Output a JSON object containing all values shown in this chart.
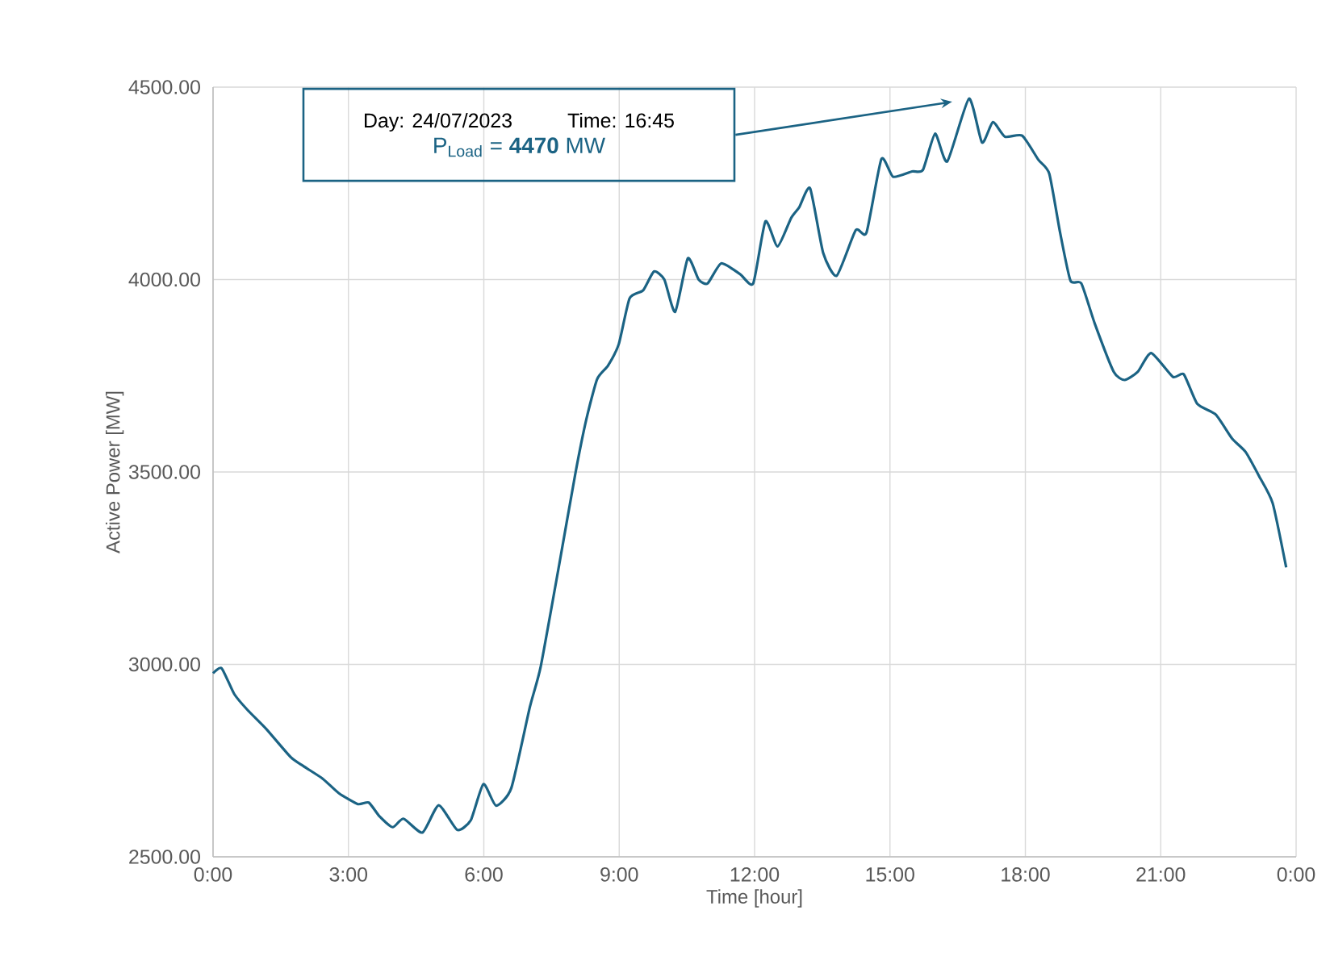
{
  "chart_data": {
    "type": "line",
    "xlabel": "Time [hour]",
    "ylabel": "Active Power [MW]",
    "xlim": [
      0,
      24
    ],
    "ylim": [
      2500,
      4500
    ],
    "xticks": [
      {
        "value": 0,
        "label": "0:00"
      },
      {
        "value": 3,
        "label": "3:00"
      },
      {
        "value": 6,
        "label": "6:00"
      },
      {
        "value": 9,
        "label": "9:00"
      },
      {
        "value": 12,
        "label": "12:00"
      },
      {
        "value": 15,
        "label": "15:00"
      },
      {
        "value": 18,
        "label": "18:00"
      },
      {
        "value": 21,
        "label": "21:00"
      },
      {
        "value": 24,
        "label": "0:00"
      }
    ],
    "yticks": [
      {
        "value": 2500,
        "label": "2500.00"
      },
      {
        "value": 3000,
        "label": "3000.00"
      },
      {
        "value": 3500,
        "label": "3500.00"
      },
      {
        "value": 4000,
        "label": "4000.00"
      },
      {
        "value": 4500,
        "label": "4500.00"
      }
    ],
    "grid": true,
    "line_style": "solid",
    "series": [
      {
        "color": "#1b6384",
        "x": [
          0,
          0.19,
          0.47,
          0.76,
          1.18,
          1.72,
          2.01,
          2.43,
          2.79,
          3.21,
          3.45,
          3.69,
          3.98,
          4.22,
          4.64,
          5.0,
          5.41,
          5.71,
          5.99,
          6.27,
          6.61,
          7.02,
          7.26,
          7.67,
          8.03,
          8.27,
          8.51,
          8.75,
          8.99,
          9.23,
          9.53,
          9.77,
          10.0,
          10.24,
          10.52,
          10.76,
          10.96,
          11.26,
          11.68,
          11.97,
          12.24,
          12.51,
          12.81,
          12.99,
          13.23,
          13.52,
          13.82,
          14.24,
          14.48,
          14.81,
          15.07,
          15.49,
          15.73,
          16.0,
          16.27,
          16.75,
          17.04,
          17.28,
          17.55,
          17.93,
          18.29,
          18.53,
          18.77,
          19.0,
          19.24,
          19.54,
          19.96,
          20.2,
          20.49,
          20.79,
          21.27,
          21.51,
          21.81,
          22.22,
          22.58,
          22.88,
          23.18,
          23.48,
          23.78
        ],
        "values": [
          2977,
          2990,
          2923,
          2882,
          2832,
          2759,
          2735,
          2703,
          2665,
          2637,
          2641,
          2605,
          2577,
          2599,
          2563,
          2634,
          2570,
          2595,
          2689,
          2633,
          2679,
          2889,
          2994,
          3259,
          3497,
          3636,
          3741,
          3776,
          3832,
          3951,
          3972,
          4021,
          4000,
          3916,
          4055,
          4000,
          3990,
          4042,
          4014,
          3990,
          4151,
          4086,
          4160,
          4188,
          4237,
          4069,
          4010,
          4128,
          4122,
          4313,
          4267,
          4281,
          4285,
          4379,
          4307,
          4470,
          4356,
          4409,
          4371,
          4374,
          4311,
          4275,
          4122,
          3997,
          3990,
          3885,
          3760,
          3739,
          3760,
          3809,
          3747,
          3754,
          3677,
          3649,
          3587,
          3552,
          3489,
          3419,
          3252
        ]
      }
    ],
    "annotations": [
      "Day: 24/07/2023",
      "Time: 16:45",
      "P$_{Load}$ = **4470** MW"
    ]
  }
}
